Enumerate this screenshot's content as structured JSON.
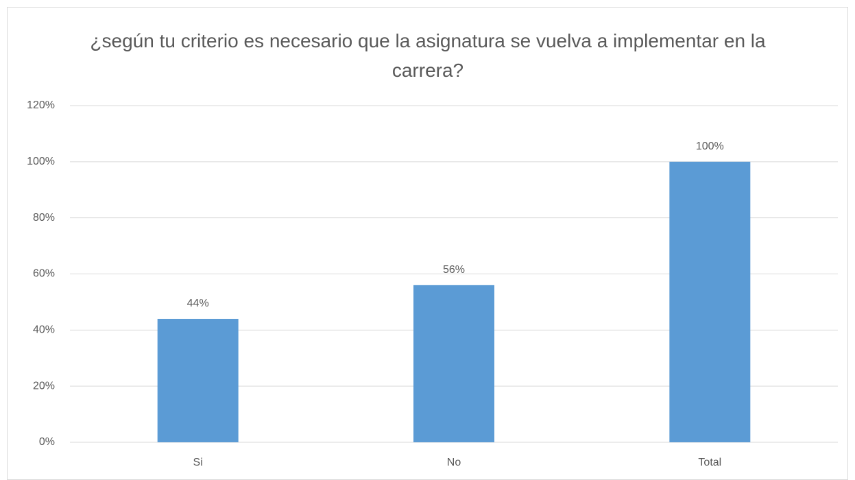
{
  "chart_data": {
    "type": "bar",
    "title": "¿según tu criterio es necesario que la asignatura se vuelva a implementar en la carrera?",
    "categories": [
      "Si",
      "No",
      "Total"
    ],
    "values": [
      44,
      56,
      100
    ],
    "value_labels": [
      "44%",
      "56%",
      "100%"
    ],
    "color": "#5b9bd5",
    "ylim": [
      0,
      120
    ],
    "yticks": [
      {
        "value": 0,
        "label": "0%"
      },
      {
        "value": 20,
        "label": "20%"
      },
      {
        "value": 40,
        "label": "40%"
      },
      {
        "value": 60,
        "label": "60%"
      },
      {
        "value": 80,
        "label": "80%"
      },
      {
        "value": 100,
        "label": "100%"
      },
      {
        "value": 120,
        "label": "120%"
      }
    ],
    "grid": true
  }
}
